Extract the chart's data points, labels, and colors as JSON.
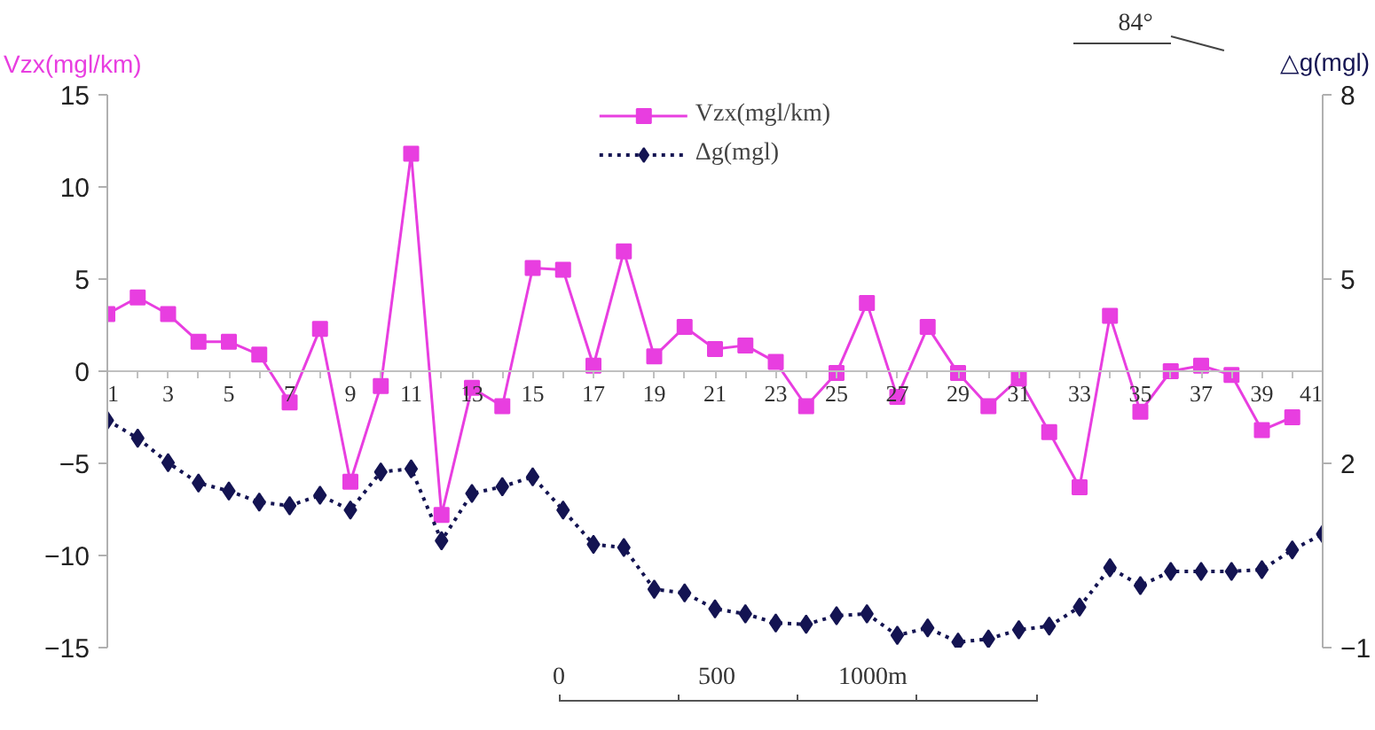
{
  "chart_data": {
    "type": "line",
    "ylabel": "Vzx(mgl/km)",
    "y2label": "△g(mgl)",
    "xlim": [
      1,
      41
    ],
    "xticks": [
      1,
      3,
      5,
      7,
      9,
      11,
      13,
      15,
      17,
      19,
      21,
      23,
      25,
      27,
      29,
      31,
      33,
      35,
      37,
      39,
      41
    ],
    "ylim": [
      -15,
      15
    ],
    "yticks": [
      -15,
      -10,
      -5,
      0,
      5,
      10,
      15
    ],
    "y2lim": [
      -1,
      8
    ],
    "y2ticks": [
      -1,
      2,
      5,
      8
    ],
    "legend": "top",
    "grid": false,
    "annotations": [
      "84°",
      "0",
      "500",
      "1000m"
    ],
    "series": [
      {
        "name": "Vzx(mgl/km)",
        "color": "#e83ee0",
        "marker": "square",
        "line_style": "solid",
        "x": [
          1,
          2,
          3,
          4,
          5,
          6,
          7,
          8,
          9,
          10,
          11,
          12,
          13,
          14,
          15,
          16,
          17,
          18,
          19,
          20,
          21,
          22,
          23,
          24,
          25,
          26,
          27,
          28,
          29,
          30,
          31,
          32,
          33,
          34,
          35,
          36,
          37,
          38,
          39,
          40
        ],
        "values": [
          3.1,
          4.0,
          3.1,
          1.6,
          1.6,
          0.9,
          -1.7,
          2.3,
          -6.0,
          -0.8,
          11.8,
          -7.8,
          -0.9,
          -1.9,
          5.6,
          5.5,
          0.3,
          6.5,
          0.8,
          2.4,
          1.2,
          1.4,
          0.5,
          -1.9,
          -0.1,
          3.7,
          -1.4,
          2.4,
          -0.1,
          -1.9,
          -0.4,
          -3.3,
          -6.3,
          3.0,
          -2.2,
          0.0,
          0.3,
          -0.2,
          -3.2,
          -2.5
        ]
      },
      {
        "name": "Δg(mgl)",
        "color": "#141452",
        "marker": "diamond",
        "line_style": "dotted",
        "axis": "y2",
        "x": [
          1,
          2,
          3,
          4,
          5,
          6,
          7,
          8,
          9,
          10,
          11,
          12,
          13,
          14,
          15,
          16,
          17,
          18,
          19,
          20,
          21,
          22,
          23,
          24,
          25,
          26,
          27,
          28,
          29,
          30,
          31,
          32,
          33,
          34,
          35,
          36,
          37,
          38,
          39,
          40,
          41
        ],
        "values": [
          2.7,
          2.41,
          2.01,
          1.68,
          1.55,
          1.37,
          1.31,
          1.48,
          1.24,
          1.86,
          1.91,
          0.74,
          1.51,
          1.62,
          1.78,
          1.24,
          0.68,
          0.63,
          -0.05,
          -0.11,
          -0.37,
          -0.45,
          -0.6,
          -0.62,
          -0.48,
          -0.45,
          -0.8,
          -0.68,
          -0.91,
          -0.86,
          -0.71,
          -0.65,
          -0.34,
          0.3,
          0.01,
          0.24,
          0.24,
          0.24,
          0.27,
          0.59,
          0.85
        ]
      }
    ]
  }
}
